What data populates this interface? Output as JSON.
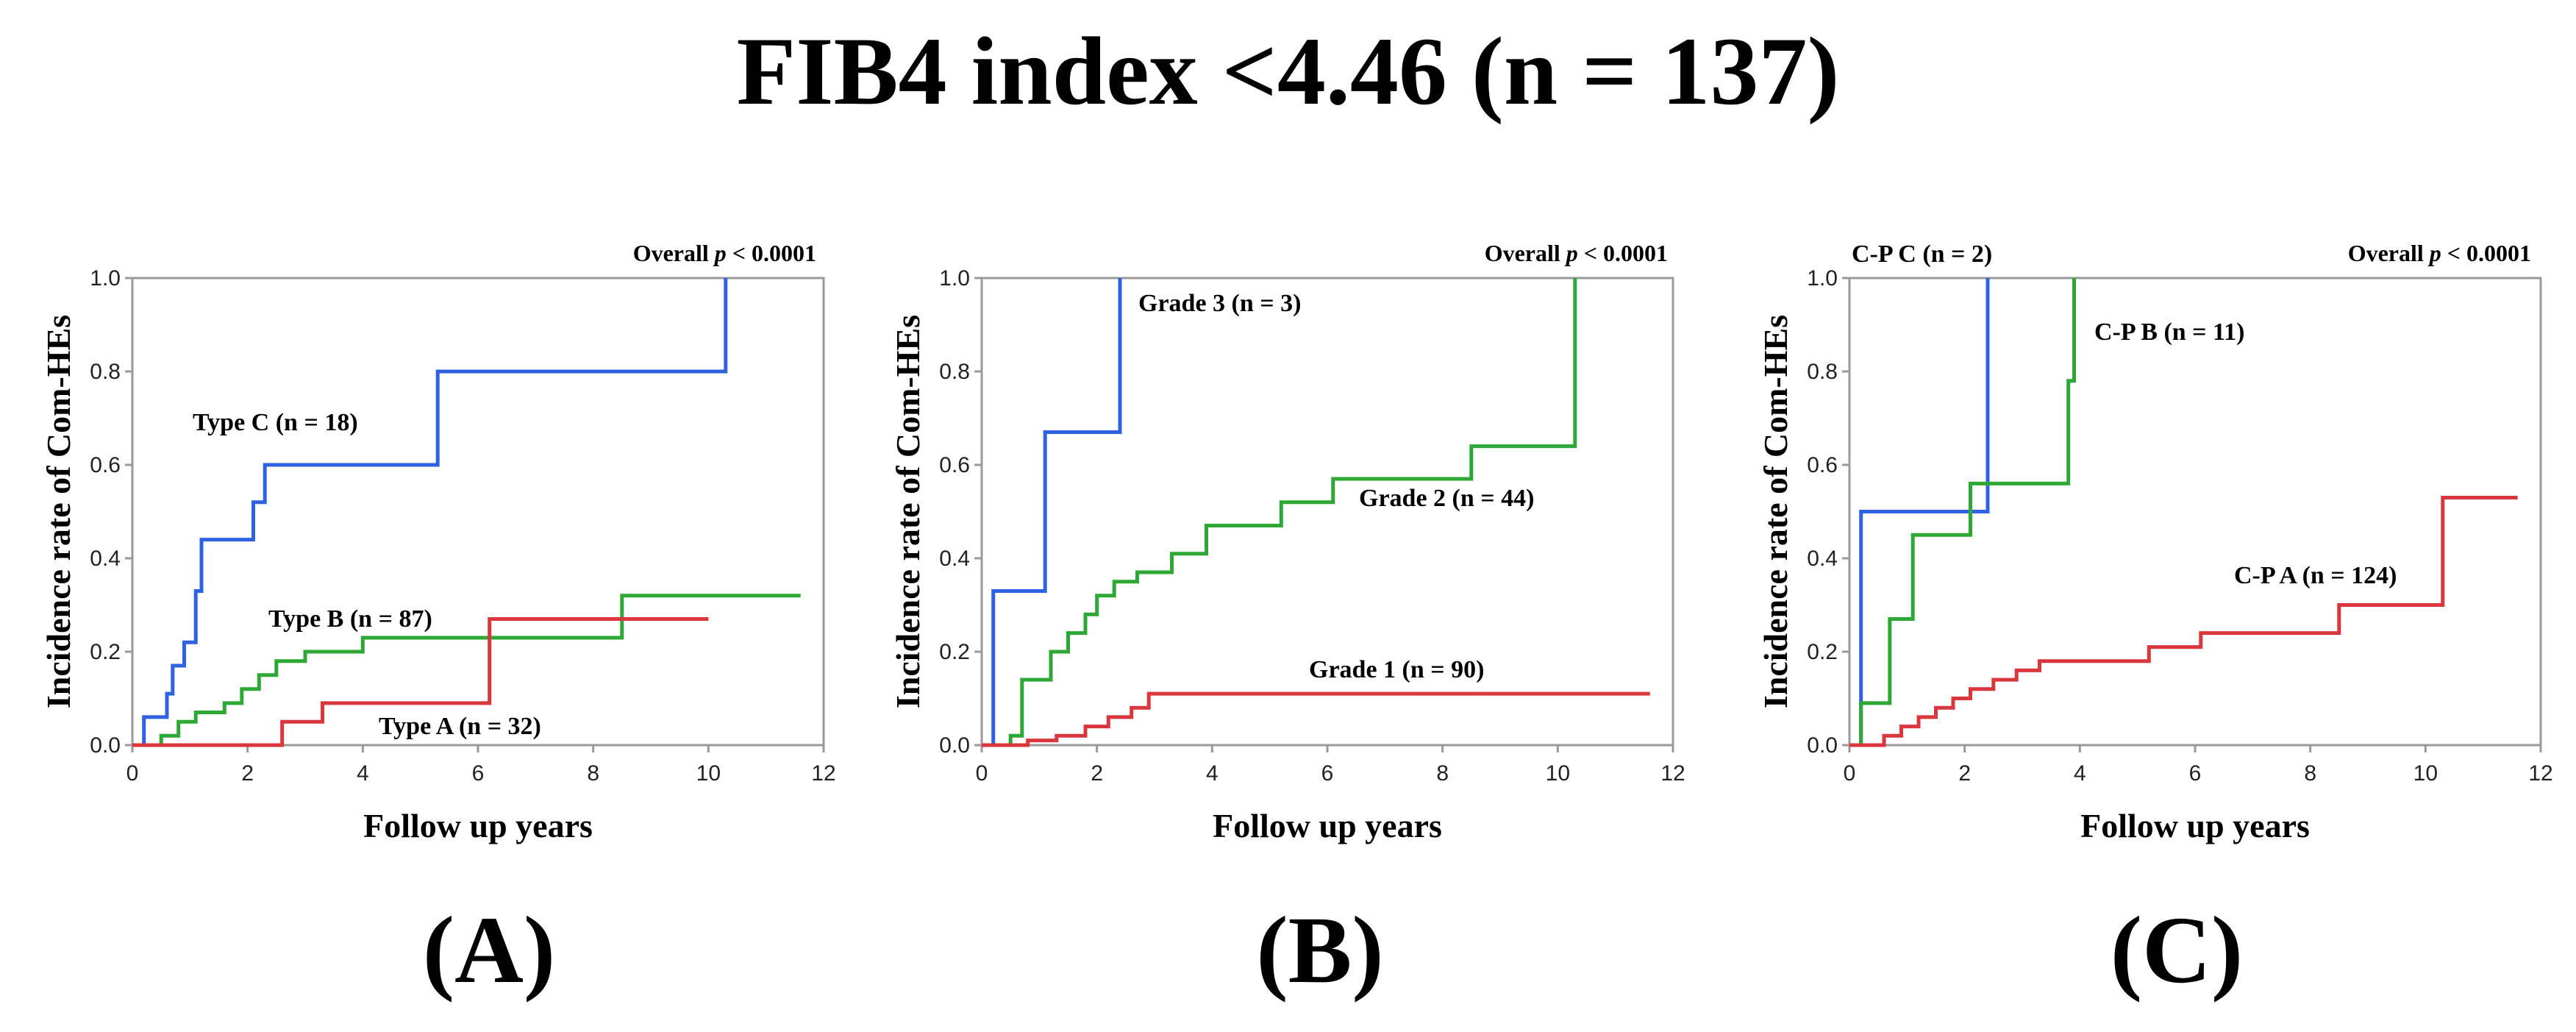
{
  "title": "FIB4 index <4.46 (n = 137)",
  "colors": {
    "red": "#d9363e",
    "green": "#2ea835",
    "blue": "#2f62e0",
    "axis": "#9a9a9a"
  },
  "chart_data": [
    {
      "type": "line",
      "step": true,
      "panel_label": "(A)",
      "pvalue_prefix": "Overall ",
      "pvalue_italic": "p",
      "pvalue_suffix": " < 0.0001",
      "xlabel": "Follow up years",
      "ylabel": "Incidence rate of Com-HEs",
      "xlim": [
        0,
        12
      ],
      "ylim": [
        0,
        1.0
      ],
      "xticks": [
        "0",
        "2",
        "4",
        "6",
        "8",
        "10",
        "12"
      ],
      "yticks": [
        "0.0",
        "0.2",
        "0.4",
        "0.6",
        "0.8",
        "1.0"
      ],
      "series": [
        {
          "name": "Type C (n = 18)",
          "color": "blue",
          "x": [
            0.1,
            0.2,
            0.6,
            0.7,
            0.9,
            1.1,
            1.2,
            1.4,
            2.1,
            2.3,
            2.6,
            5.3,
            10.3
          ],
          "y": [
            0.0,
            0.06,
            0.11,
            0.17,
            0.22,
            0.33,
            0.44,
            0.44,
            0.52,
            0.6,
            0.6,
            0.8,
            1.0
          ]
        },
        {
          "name": "Type B (n = 87)",
          "color": "green",
          "x": [
            0.2,
            0.5,
            0.8,
            1.1,
            1.6,
            1.9,
            2.2,
            2.5,
            3.0,
            4.0,
            8.5,
            11.6
          ],
          "y": [
            0.0,
            0.02,
            0.05,
            0.07,
            0.09,
            0.12,
            0.15,
            0.18,
            0.2,
            0.23,
            0.32,
            0.32
          ]
        },
        {
          "name": "Type A (n = 32)",
          "color": "red",
          "x": [
            0.0,
            2.6,
            3.3,
            6.2,
            10.0
          ],
          "y": [
            0.0,
            0.05,
            0.09,
            0.27,
            0.27
          ]
        }
      ]
    },
    {
      "type": "line",
      "step": true,
      "panel_label": "(B)",
      "pvalue_prefix": "Overall ",
      "pvalue_italic": "p",
      "pvalue_suffix": " < 0.0001",
      "xlabel": "Follow up years",
      "ylabel": "Incidence rate of Com-HEs",
      "xlim": [
        0,
        12
      ],
      "ylim": [
        0,
        1.0
      ],
      "xticks": [
        "0",
        "2",
        "4",
        "6",
        "8",
        "10",
        "12"
      ],
      "yticks": [
        "0.0",
        "0.2",
        "0.4",
        "0.6",
        "0.8",
        "1.0"
      ],
      "series": [
        {
          "name": "Grade 3 (n = 3)",
          "color": "blue",
          "x": [
            0.2,
            1.1,
            2.4
          ],
          "y": [
            0.33,
            0.67,
            1.0
          ]
        },
        {
          "name": "Grade 2 (n = 44)",
          "color": "green",
          "x": [
            0.1,
            0.5,
            0.7,
            1.2,
            1.5,
            1.8,
            2.0,
            2.3,
            2.7,
            3.3,
            3.9,
            5.2,
            6.1,
            8.5,
            10.3
          ],
          "y": [
            0.0,
            0.02,
            0.14,
            0.2,
            0.24,
            0.28,
            0.32,
            0.35,
            0.37,
            0.41,
            0.47,
            0.52,
            0.57,
            0.64,
            1.0
          ]
        },
        {
          "name": "Grade 1 (n = 90)",
          "color": "red",
          "x": [
            0.0,
            0.8,
            1.3,
            1.8,
            2.2,
            2.6,
            2.9,
            11.6
          ],
          "y": [
            0.0,
            0.01,
            0.02,
            0.04,
            0.06,
            0.08,
            0.11,
            0.11
          ]
        }
      ]
    },
    {
      "type": "line",
      "step": true,
      "panel_label": "(C)",
      "pvalue_prefix": "Overall ",
      "pvalue_italic": "p",
      "pvalue_suffix": " < 0.0001",
      "xlabel": "Follow up years",
      "ylabel": "Incidence rate of Com-HEs",
      "xlim": [
        0,
        12
      ],
      "ylim": [
        0,
        1.0
      ],
      "xticks": [
        "0",
        "2",
        "4",
        "6",
        "8",
        "10",
        "12"
      ],
      "yticks": [
        "0.0",
        "0.2",
        "0.4",
        "0.6",
        "0.8",
        "1.0"
      ],
      "series": [
        {
          "name": "C-P C (n = 2)",
          "color": "blue",
          "x": [
            0.2,
            2.4
          ],
          "y": [
            0.5,
            1.0
          ]
        },
        {
          "name": "C-P B (n = 11)",
          "color": "green",
          "x": [
            0.1,
            0.2,
            0.7,
            1.1,
            2.1,
            3.8,
            3.9
          ],
          "y": [
            0.0,
            0.09,
            0.27,
            0.45,
            0.56,
            0.78,
            1.0
          ]
        },
        {
          "name": "C-P A (n = 124)",
          "color": "red",
          "x": [
            0.0,
            0.6,
            0.9,
            1.2,
            1.5,
            1.8,
            2.1,
            2.5,
            2.9,
            3.3,
            5.2,
            6.1,
            8.5,
            10.3,
            11.6
          ],
          "y": [
            0.0,
            0.02,
            0.04,
            0.06,
            0.08,
            0.1,
            0.12,
            0.14,
            0.16,
            0.18,
            0.21,
            0.24,
            0.3,
            0.53,
            0.53
          ]
        }
      ]
    }
  ]
}
